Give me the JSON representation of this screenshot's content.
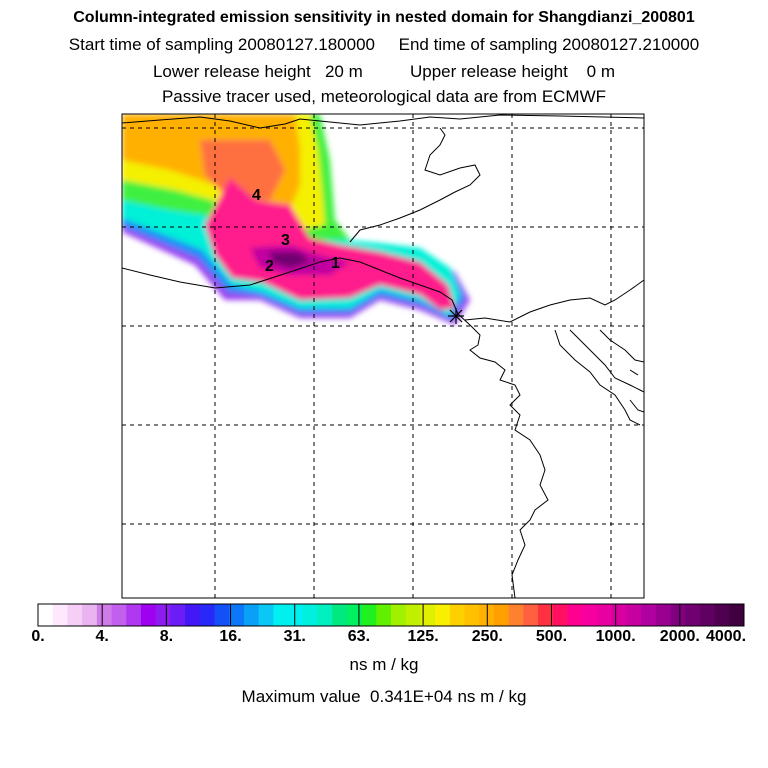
{
  "header": {
    "title": "Column-integrated emission sensitivity in nested domain for Shangdianzi_200801",
    "sampling_line": "Start time of sampling 20080127.180000     End time of sampling 20080127.210000",
    "release_line": "Lower release height   20 m          Upper release height    0 m",
    "tracer_line": "Passive tracer used, meteorological data are from ECMWF"
  },
  "map": {
    "trajectory_labels": [
      "4",
      "3",
      "2",
      "1"
    ],
    "release_marker": "star-icon"
  },
  "colorbar": {
    "tick_labels": [
      "0.",
      "4.",
      "8.",
      "16.",
      "31.",
      "63.",
      "125.",
      "250.",
      "500.",
      "1000.",
      "2000.",
      "4000."
    ],
    "colors": [
      "#ffffff",
      "#fde8fd",
      "#f6cff6",
      "#eab4f0",
      "#d07ce8",
      "#c060ec",
      "#b038f0",
      "#a000f0",
      "#8c1cf0",
      "#6a1ef5",
      "#4218f6",
      "#2828f8",
      "#1450f8",
      "#0a78f8",
      "#0aa0f6",
      "#0ac8f6",
      "#00f0f0",
      "#00f0f0",
      "#00f0e0",
      "#00f0c0",
      "#00e880",
      "#00f060",
      "#20f020",
      "#60f000",
      "#a0f000",
      "#c0f000",
      "#e0f000",
      "#f8f000",
      "#ffd000",
      "#ffc000",
      "#ffb000",
      "#ffa000",
      "#ff8030",
      "#ff6040",
      "#ff3040",
      "#ff1060",
      "#ff0090",
      "#f800a0",
      "#e800a0",
      "#d800a0",
      "#c800a0",
      "#b000a0",
      "#9a0090",
      "#800080",
      "#700070",
      "#600060",
      "#500050",
      "#400040"
    ],
    "unit": "ns m / kg"
  },
  "footer": {
    "max_value": "Maximum value  0.341E+04 ns m / kg"
  }
}
